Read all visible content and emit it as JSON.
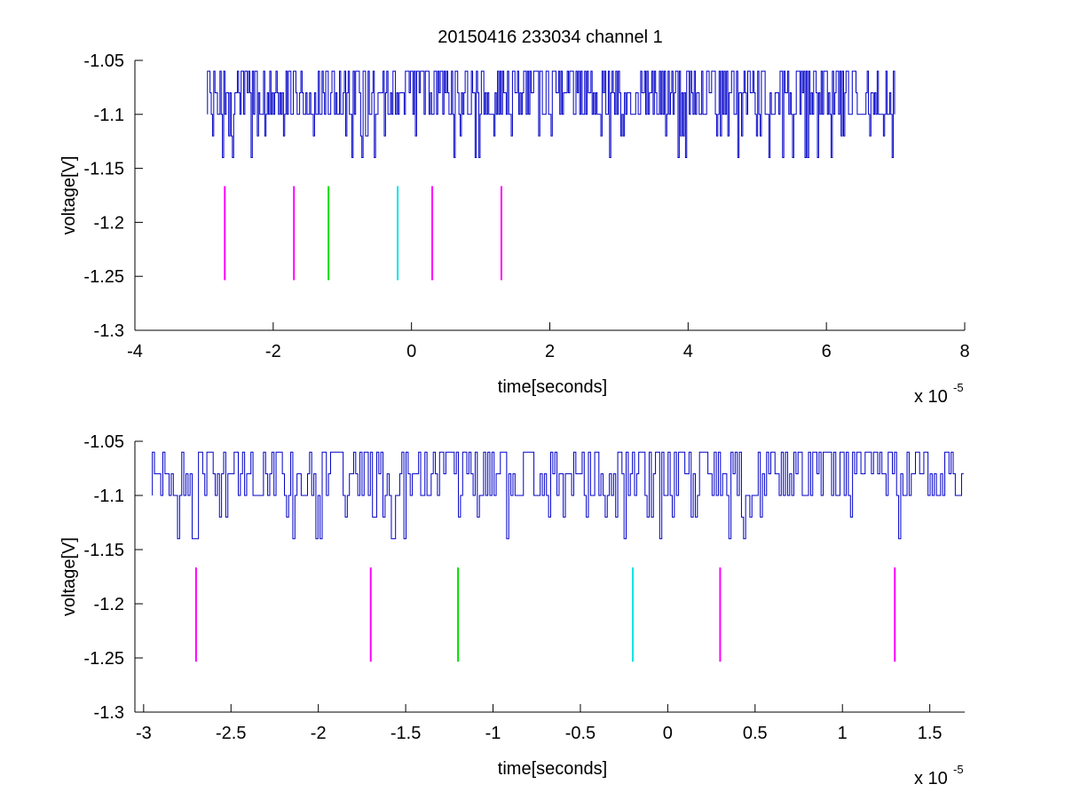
{
  "figure": {
    "title": "20150416 233034 channel 1"
  },
  "chart_data": [
    {
      "type": "line",
      "title": "20150416 233034 channel 1",
      "xlabel": "time[seconds]",
      "ylabel": "voltage[V]",
      "x_multiplier_label": "x 10",
      "x_multiplier_exponent": "-5",
      "xlim": [
        -4,
        8
      ],
      "ylim": [
        -1.3,
        -1.05
      ],
      "xticks": [
        -4,
        -2,
        0,
        2,
        4,
        6,
        8
      ],
      "xtick_labels": [
        "-4",
        "-2",
        "0",
        "2",
        "4",
        "6",
        "8"
      ],
      "yticks": [
        -1.3,
        -1.25,
        -1.2,
        -1.15,
        -1.1,
        -1.05
      ],
      "ytick_labels": [
        "-1.3",
        "-1.25",
        "-1.2",
        "-1.15",
        "-1.1",
        "-1.05"
      ],
      "grid": false,
      "signal": {
        "color": "#0000c8",
        "x_range": [
          -2.95,
          7.0
        ],
        "base": -1.1,
        "levels": [
          -1.06,
          -1.08,
          -1.1,
          -1.12,
          -1.14
        ]
      },
      "markers": [
        {
          "x": -2.7,
          "y_range": [
            -1.2535,
            -1.1665
          ],
          "color": "#ff00ff"
        },
        {
          "x": -1.7,
          "y_range": [
            -1.2535,
            -1.1665
          ],
          "color": "#ff00ff"
        },
        {
          "x": -1.2,
          "y_range": [
            -1.2535,
            -1.1665
          ],
          "color": "#00dd00"
        },
        {
          "x": -0.2,
          "y_range": [
            -1.2535,
            -1.1665
          ],
          "color": "#00e5e5"
        },
        {
          "x": 0.3,
          "y_range": [
            -1.2535,
            -1.1665
          ],
          "color": "#ff00ff"
        },
        {
          "x": 1.3,
          "y_range": [
            -1.2535,
            -1.1665
          ],
          "color": "#ff00ff"
        }
      ]
    },
    {
      "type": "line",
      "title": "",
      "xlabel": "time[seconds]",
      "ylabel": "voltage[V]",
      "x_multiplier_label": "x 10",
      "x_multiplier_exponent": "-5",
      "xlim": [
        -3.05,
        1.7
      ],
      "ylim": [
        -1.3,
        -1.05
      ],
      "xticks": [
        -3,
        -2.5,
        -2,
        -1.5,
        -1,
        -0.5,
        0,
        0.5,
        1,
        1.5
      ],
      "xtick_labels": [
        "-3",
        "-2.5",
        "-2",
        "-1.5",
        "-1",
        "-0.5",
        "0",
        "0.5",
        "1",
        "1.5"
      ],
      "yticks": [
        -1.3,
        -1.25,
        -1.2,
        -1.15,
        -1.1,
        -1.05
      ],
      "ytick_labels": [
        "-1.3",
        "-1.25",
        "-1.2",
        "-1.15",
        "-1.1",
        "-1.05"
      ],
      "grid": false,
      "signal": {
        "color": "#0000c8",
        "x_range": [
          -2.95,
          1.7
        ],
        "base": -1.1,
        "levels": [
          -1.06,
          -1.08,
          -1.1,
          -1.12,
          -1.14
        ]
      },
      "markers": [
        {
          "x": -2.7,
          "y_range": [
            -1.2535,
            -1.1665
          ],
          "color": "#ff00ff"
        },
        {
          "x": -1.7,
          "y_range": [
            -1.2535,
            -1.1665
          ],
          "color": "#ff00ff"
        },
        {
          "x": -1.2,
          "y_range": [
            -1.2535,
            -1.1665
          ],
          "color": "#00dd00"
        },
        {
          "x": -0.2,
          "y_range": [
            -1.2535,
            -1.1665
          ],
          "color": "#00e5e5"
        },
        {
          "x": 0.3,
          "y_range": [
            -1.2535,
            -1.1665
          ],
          "color": "#ff00ff"
        },
        {
          "x": 1.3,
          "y_range": [
            -1.2535,
            -1.1665
          ],
          "color": "#ff00ff"
        }
      ]
    }
  ]
}
